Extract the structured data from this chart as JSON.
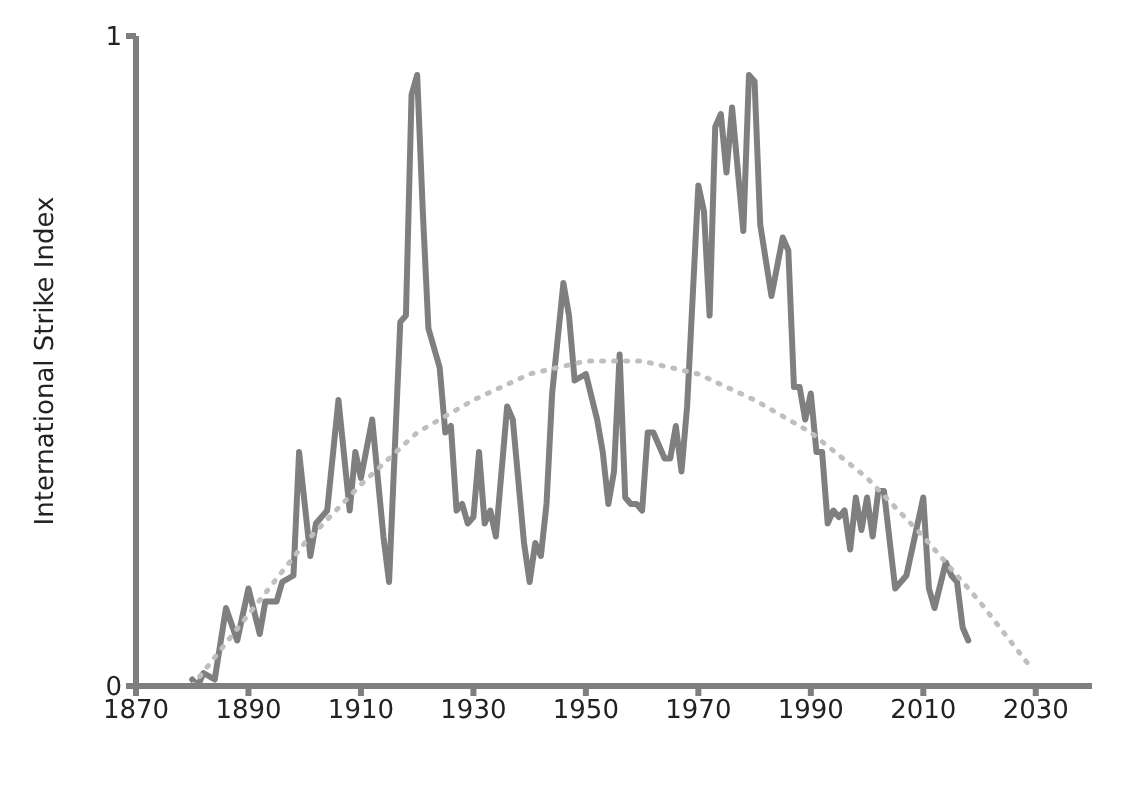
{
  "chart_data": {
    "type": "line",
    "ylabel": "International Strike Index",
    "xlim": [
      1870,
      2040
    ],
    "xticks": [
      1870,
      1890,
      1910,
      1930,
      1950,
      1970,
      1990,
      2010,
      2030
    ],
    "ylim": [
      0,
      1
    ],
    "yticks": [
      0,
      1
    ],
    "grid": false,
    "marker": "none",
    "series": [
      {
        "color": "#7f7f7f",
        "line_style": "solid",
        "x": [
          1880,
          1881,
          1882,
          1884,
          1886,
          1888,
          1890,
          1892,
          1893,
          1895,
          1896,
          1898,
          1899,
          1901,
          1902,
          1904,
          1906,
          1908,
          1909,
          1910,
          1912,
          1914,
          1915,
          1917,
          1918,
          1919,
          1920,
          1921,
          1922,
          1924,
          1925,
          1926,
          1927,
          1928,
          1929,
          1930,
          1931,
          1932,
          1933,
          1934,
          1936,
          1937,
          1939,
          1940,
          1941,
          1942,
          1943,
          1944,
          1946,
          1947,
          1948,
          1950,
          1952,
          1953,
          1954,
          1955,
          1956,
          1957,
          1958,
          1959,
          1960,
          1961,
          1962,
          1964,
          1965,
          1966,
          1967,
          1968,
          1970,
          1971,
          1972,
          1973,
          1974,
          1975,
          1976,
          1978,
          1979,
          1980,
          1981,
          1983,
          1985,
          1986,
          1987,
          1988,
          1989,
          1990,
          1991,
          1992,
          1993,
          1994,
          1995,
          1996,
          1997,
          1998,
          1999,
          2000,
          2001,
          2002,
          2003,
          2005,
          2006,
          2007,
          2010,
          2011,
          2012,
          2014,
          2015,
          2016,
          2017,
          2018
        ],
        "values": [
          0.01,
          0.0,
          0.02,
          0.01,
          0.12,
          0.07,
          0.15,
          0.08,
          0.13,
          0.13,
          0.16,
          0.17,
          0.36,
          0.2,
          0.25,
          0.27,
          0.44,
          0.27,
          0.36,
          0.32,
          0.41,
          0.23,
          0.16,
          0.56,
          0.57,
          0.91,
          0.94,
          0.73,
          0.55,
          0.49,
          0.39,
          0.4,
          0.27,
          0.28,
          0.25,
          0.26,
          0.36,
          0.25,
          0.27,
          0.23,
          0.43,
          0.41,
          0.22,
          0.16,
          0.22,
          0.2,
          0.28,
          0.45,
          0.62,
          0.57,
          0.47,
          0.48,
          0.41,
          0.36,
          0.28,
          0.33,
          0.51,
          0.29,
          0.28,
          0.28,
          0.27,
          0.39,
          0.39,
          0.35,
          0.35,
          0.4,
          0.33,
          0.43,
          0.77,
          0.73,
          0.57,
          0.86,
          0.88,
          0.79,
          0.89,
          0.7,
          0.94,
          0.93,
          0.71,
          0.6,
          0.69,
          0.67,
          0.46,
          0.46,
          0.41,
          0.45,
          0.36,
          0.36,
          0.25,
          0.27,
          0.26,
          0.27,
          0.21,
          0.29,
          0.24,
          0.29,
          0.23,
          0.3,
          0.3,
          0.15,
          0.16,
          0.17,
          0.29,
          0.15,
          0.12,
          0.19,
          0.17,
          0.16,
          0.09,
          0.07
        ]
      },
      {
        "type": "line",
        "color": "#bfbfbf",
        "line_style": "dotted",
        "x": [
          1880,
          1890,
          1900,
          1910,
          1920,
          1930,
          1940,
          1950,
          1960,
          1970,
          1980,
          1990,
          2000,
          2010,
          2020,
          2029
        ],
        "values": [
          0.0,
          0.11,
          0.22,
          0.31,
          0.39,
          0.44,
          0.48,
          0.5,
          0.5,
          0.48,
          0.44,
          0.39,
          0.32,
          0.23,
          0.13,
          0.03
        ]
      }
    ]
  }
}
